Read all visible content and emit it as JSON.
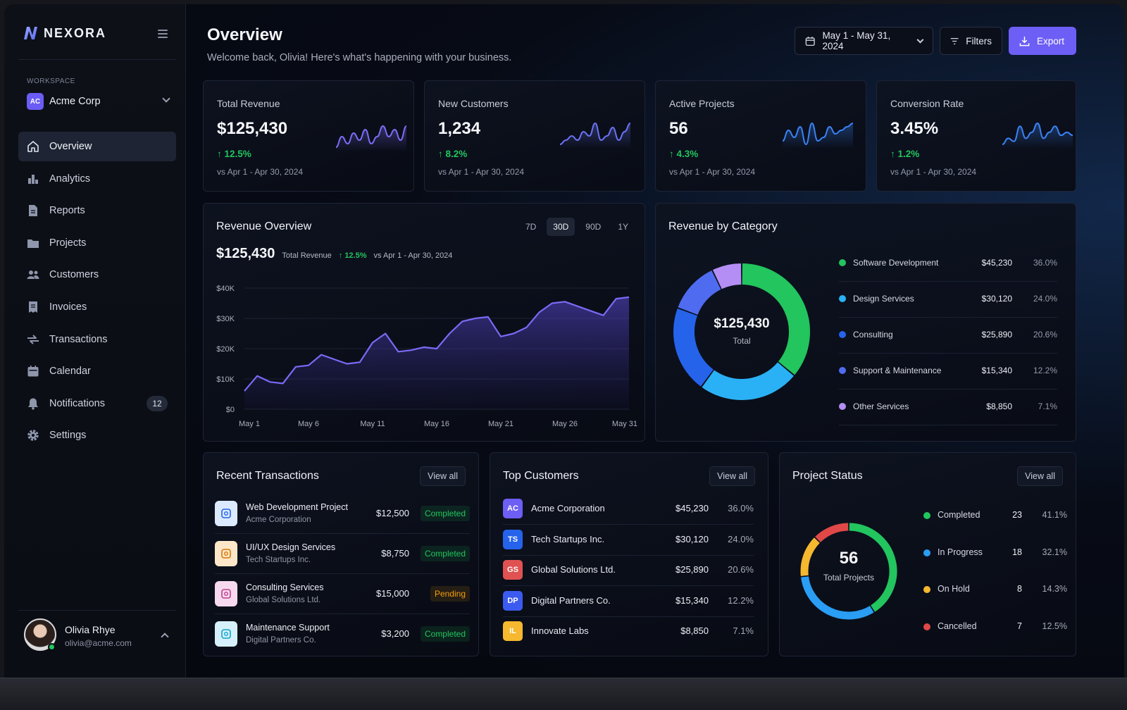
{
  "brand": {
    "name": "NEXORA"
  },
  "workspace": {
    "label": "WORKSPACE",
    "badge": "AC",
    "name": "Acme Corp"
  },
  "nav": [
    {
      "label": "Overview",
      "icon": "home-icon",
      "active": true
    },
    {
      "label": "Analytics",
      "icon": "bar-chart-icon"
    },
    {
      "label": "Reports",
      "icon": "document-icon"
    },
    {
      "label": "Projects",
      "icon": "folder-icon"
    },
    {
      "label": "Customers",
      "icon": "users-icon"
    },
    {
      "label": "Invoices",
      "icon": "invoice-icon"
    },
    {
      "label": "Transactions",
      "icon": "transfer-icon"
    },
    {
      "label": "Calendar",
      "icon": "calendar-icon"
    },
    {
      "label": "Notifications",
      "icon": "bell-icon",
      "badge": "12"
    },
    {
      "label": "Settings",
      "icon": "gear-icon"
    }
  ],
  "user": {
    "name": "Olivia Rhye",
    "email": "olivia@acme.com"
  },
  "header": {
    "title": "Overview",
    "subtitle": "Welcome back, Olivia! Here's what's happening with your business.",
    "date_range": "May 1 - May 31, 2024",
    "filters_label": "Filters",
    "export_label": "Export"
  },
  "kpis": [
    {
      "label": "Total Revenue",
      "value": "$125,430",
      "change": "12.5%",
      "period": "vs Apr 1 - Apr 30, 2024",
      "spark": [
        3,
        6,
        4,
        7,
        5,
        8,
        4,
        6,
        9,
        6,
        8,
        5,
        9
      ],
      "color": "#7c6cf6"
    },
    {
      "label": "New Customers",
      "value": "1,234",
      "change": "8.2%",
      "period": "vs Apr 1 - Apr 30, 2024",
      "spark": [
        4,
        5,
        6,
        5,
        7,
        6,
        9,
        5,
        6,
        8,
        5,
        7,
        9
      ],
      "color": "#6a72f2"
    },
    {
      "label": "Active Projects",
      "value": "56",
      "change": "4.3%",
      "period": "vs Apr 1 - Apr 30, 2024",
      "spark": [
        4,
        7,
        5,
        8,
        3,
        9,
        4,
        5,
        8,
        6,
        7,
        8,
        9
      ],
      "color": "#3b82f6"
    },
    {
      "label": "Conversion Rate",
      "value": "3.45%",
      "change": "1.2%",
      "period": "vs Apr 1 - Apr 30, 2024",
      "spark": [
        2,
        4,
        3,
        8,
        4,
        6,
        9,
        4,
        6,
        8,
        5,
        6,
        5
      ],
      "color": "#3b82f6"
    }
  ],
  "revenue_overview": {
    "title": "Revenue Overview",
    "tabs": [
      "7D",
      "30D",
      "90D",
      "1Y"
    ],
    "active_tab": "30D",
    "value": "$125,430",
    "value_label": "Total Revenue",
    "change": "12.5%",
    "period": "vs Apr 1 - Apr 30, 2024"
  },
  "chart_data": {
    "type": "area",
    "x": [
      "May 1",
      "May 2",
      "May 3",
      "May 4",
      "May 5",
      "May 6",
      "May 7",
      "May 8",
      "May 9",
      "May 10",
      "May 11",
      "May 12",
      "May 13",
      "May 14",
      "May 15",
      "May 16",
      "May 17",
      "May 18",
      "May 19",
      "May 20",
      "May 21",
      "May 22",
      "May 23",
      "May 24",
      "May 25",
      "May 26",
      "May 27",
      "May 28",
      "May 29",
      "May 30",
      "May 31"
    ],
    "values": [
      6000,
      11000,
      9000,
      8500,
      14000,
      14500,
      18000,
      16500,
      15000,
      15500,
      22000,
      25000,
      19000,
      19500,
      20500,
      20000,
      25000,
      29000,
      30000,
      30500,
      24000,
      25000,
      27000,
      32000,
      35000,
      35500,
      34000,
      32500,
      31000,
      36500,
      37000
    ],
    "series": [
      {
        "name": "Revenue",
        "color": "#7a6af5"
      }
    ],
    "x_ticks": [
      "May 1",
      "May 6",
      "May 11",
      "May 16",
      "May 21",
      "May 26",
      "May 31"
    ],
    "y_ticks": [
      "$0",
      "$10K",
      "$20K",
      "$30K",
      "$40K"
    ],
    "ylim": [
      0,
      40000
    ],
    "grid": true
  },
  "revenue_by_category": {
    "title": "Revenue by Category",
    "total": "$125,430",
    "total_label": "Total",
    "items": [
      {
        "name": "Software Development",
        "value": "$45,230",
        "pct": "36.0%",
        "share": 36.0,
        "color": "#22c55e"
      },
      {
        "name": "Design Services",
        "value": "$30,120",
        "pct": "24.0%",
        "share": 24.0,
        "color": "#2ab1f5"
      },
      {
        "name": "Consulting",
        "value": "$25,890",
        "pct": "20.6%",
        "share": 20.6,
        "color": "#2563eb"
      },
      {
        "name": "Support & Maintenance",
        "value": "$15,340",
        "pct": "12.2%",
        "share": 12.2,
        "color": "#4f6cf0"
      },
      {
        "name": "Other Services",
        "value": "$8,850",
        "pct": "7.1%",
        "share": 7.1,
        "color": "#b48ef5"
      }
    ]
  },
  "recent_transactions": {
    "title": "Recent Transactions",
    "view_all": "View all",
    "items": [
      {
        "title": "Web Development Project",
        "client": "Acme Corporation",
        "amount": "$12,500",
        "status": "Completed",
        "icon": "code-box-icon",
        "bg": "#dbeafe",
        "fg": "#2563eb"
      },
      {
        "title": "UI/UX Design Services",
        "client": "Tech Startups Inc.",
        "amount": "$8,750",
        "status": "Completed",
        "icon": "design-icon",
        "bg": "#fde7c8",
        "fg": "#d97706"
      },
      {
        "title": "Consulting Services",
        "client": "Global Solutions Ltd.",
        "amount": "$15,000",
        "status": "Pending",
        "icon": "consulting-icon",
        "bg": "#f6d9ee",
        "fg": "#be3f8e"
      },
      {
        "title": "Maintenance Support",
        "client": "Digital Partners Co.",
        "amount": "$3,200",
        "status": "Completed",
        "icon": "support-icon",
        "bg": "#d6f0fb",
        "fg": "#0ea5c9"
      }
    ]
  },
  "top_customers": {
    "title": "Top Customers",
    "view_all": "View all",
    "items": [
      {
        "initials": "AC",
        "name": "Acme Corporation",
        "amount": "$45,230",
        "pct": "36.0%",
        "color": "#6d5ef5"
      },
      {
        "initials": "TS",
        "name": "Tech Startups Inc.",
        "amount": "$30,120",
        "pct": "24.0%",
        "color": "#2563eb"
      },
      {
        "initials": "GS",
        "name": "Global Solutions Ltd.",
        "amount": "$25,890",
        "pct": "20.6%",
        "color": "#e05252"
      },
      {
        "initials": "DP",
        "name": "Digital Partners Co.",
        "amount": "$15,340",
        "pct": "12.2%",
        "color": "#3b5bf0"
      },
      {
        "initials": "IL",
        "name": "Innovate Labs",
        "amount": "$8,850",
        "pct": "7.1%",
        "color": "#f5b82e"
      }
    ]
  },
  "project_status": {
    "title": "Project Status",
    "view_all": "View all",
    "total": "56",
    "total_label": "Total Projects",
    "items": [
      {
        "name": "Completed",
        "count": "23",
        "pct": "41.1%",
        "share": 41.1,
        "color": "#22c55e"
      },
      {
        "name": "In Progress",
        "count": "18",
        "pct": "32.1%",
        "share": 32.1,
        "color": "#2a9df5"
      },
      {
        "name": "On Hold",
        "count": "8",
        "pct": "14.3%",
        "share": 14.3,
        "color": "#f5b82e"
      },
      {
        "name": "Cancelled",
        "count": "7",
        "pct": "12.5%",
        "share": 12.5,
        "color": "#e04848"
      }
    ]
  }
}
